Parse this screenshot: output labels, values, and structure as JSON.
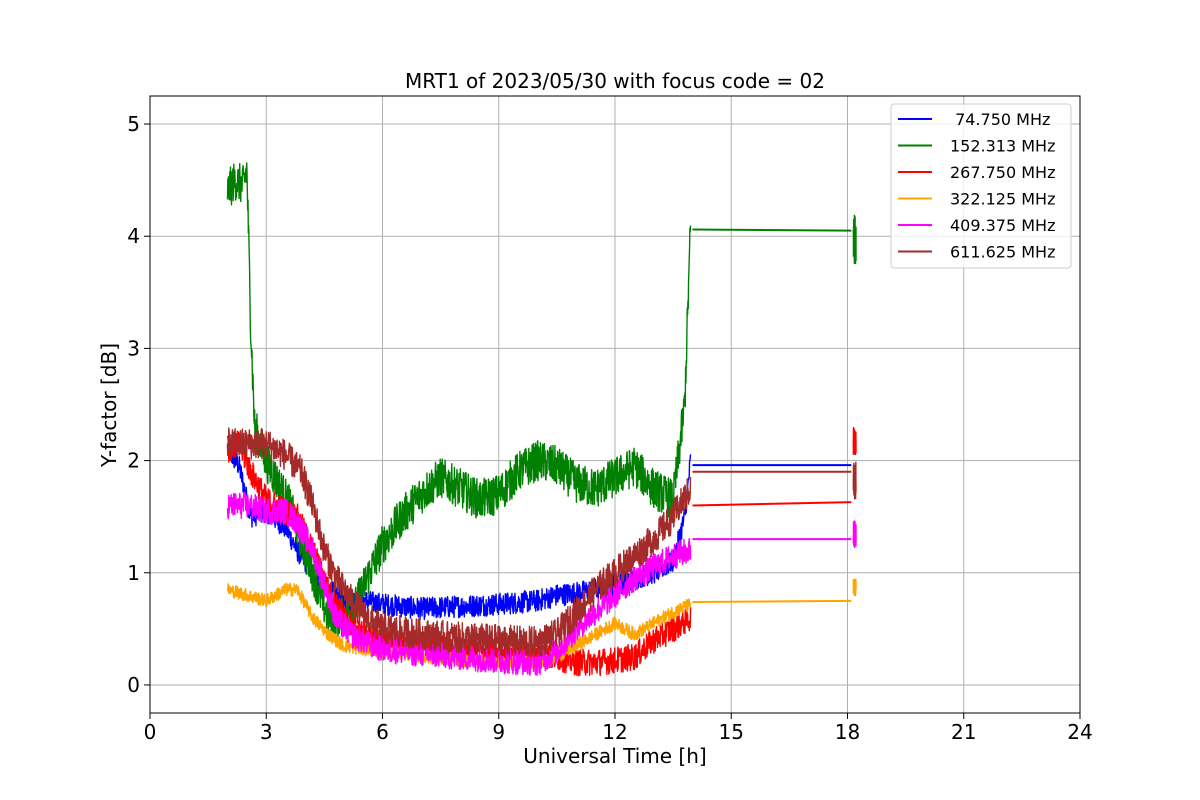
{
  "chart_data": {
    "type": "line",
    "title": "MRT1 of 2023/05/30 with focus code = 02",
    "xlabel": "Universal Time [h]",
    "ylabel": "Y-factor [dB]",
    "xlim": [
      0,
      24
    ],
    "ylim": [
      -0.25,
      5.25
    ],
    "xticks": [
      0,
      3,
      6,
      9,
      12,
      15,
      18,
      21,
      24
    ],
    "xtick_labels": [
      "0",
      "3",
      "6",
      "9",
      "12",
      "15",
      "18",
      "21",
      "24"
    ],
    "yticks": [
      0,
      1,
      2,
      3,
      4,
      5
    ],
    "ytick_labels": [
      "0",
      "1",
      "2",
      "3",
      "4",
      "5"
    ],
    "grid": true,
    "legend_position": "top-right",
    "series": [
      {
        "name": " 74.750 MHz",
        "color": "#0000ff",
        "noise": 0.1,
        "points": [
          [
            2.0,
            2.1
          ],
          [
            2.3,
            1.95
          ],
          [
            2.6,
            1.5
          ],
          [
            3.0,
            1.55
          ],
          [
            3.5,
            1.4
          ],
          [
            3.8,
            1.2
          ],
          [
            4.2,
            1.0
          ],
          [
            4.6,
            0.85
          ],
          [
            5.0,
            0.75
          ],
          [
            5.5,
            0.75
          ],
          [
            6.0,
            0.72
          ],
          [
            7.0,
            0.68
          ],
          [
            8.0,
            0.7
          ],
          [
            9.0,
            0.72
          ],
          [
            10.0,
            0.75
          ],
          [
            10.5,
            0.8
          ],
          [
            11.0,
            0.82
          ],
          [
            11.5,
            0.85
          ],
          [
            12.0,
            0.9
          ],
          [
            12.5,
            0.95
          ],
          [
            13.0,
            1.0
          ],
          [
            13.5,
            1.1
          ],
          [
            13.8,
            1.5
          ],
          [
            13.95,
            2.0
          ]
        ],
        "flat": [
          [
            14.0,
            1.96
          ],
          [
            18.1,
            1.96
          ]
        ]
      },
      {
        "name": "152.313 MHz",
        "color": "#008000",
        "noise": 0.18,
        "points": [
          [
            2.0,
            4.4
          ],
          [
            2.2,
            4.5
          ],
          [
            2.4,
            4.45
          ],
          [
            2.5,
            4.6
          ],
          [
            2.6,
            3.2
          ],
          [
            2.7,
            2.3
          ],
          [
            3.0,
            2.0
          ],
          [
            3.3,
            1.8
          ],
          [
            3.6,
            1.6
          ],
          [
            4.0,
            1.2
          ],
          [
            4.3,
            0.9
          ],
          [
            4.6,
            0.6
          ],
          [
            5.0,
            0.6
          ],
          [
            5.3,
            0.7
          ],
          [
            5.6,
            0.95
          ],
          [
            6.0,
            1.25
          ],
          [
            6.5,
            1.5
          ],
          [
            7.0,
            1.7
          ],
          [
            7.5,
            1.85
          ],
          [
            8.0,
            1.75
          ],
          [
            8.5,
            1.65
          ],
          [
            9.0,
            1.7
          ],
          [
            9.5,
            1.9
          ],
          [
            10.0,
            2.0
          ],
          [
            10.5,
            1.95
          ],
          [
            11.0,
            1.8
          ],
          [
            11.5,
            1.75
          ],
          [
            12.0,
            1.85
          ],
          [
            12.5,
            1.95
          ],
          [
            13.0,
            1.75
          ],
          [
            13.5,
            1.65
          ],
          [
            13.8,
            2.5
          ],
          [
            13.95,
            4.1
          ]
        ],
        "flat": [
          [
            14.0,
            4.06
          ],
          [
            18.1,
            4.05
          ]
        ],
        "cluster": [
          18.15,
          18.22,
          3.75,
          4.2
        ]
      },
      {
        "name": "267.750 MHz",
        "color": "#ff0000",
        "noise": 0.12,
        "points": [
          [
            2.0,
            2.1
          ],
          [
            2.3,
            2.15
          ],
          [
            2.6,
            1.9
          ],
          [
            3.0,
            1.65
          ],
          [
            3.5,
            1.55
          ],
          [
            3.8,
            1.5
          ],
          [
            4.2,
            1.2
          ],
          [
            4.6,
            0.85
          ],
          [
            5.0,
            0.6
          ],
          [
            5.5,
            0.45
          ],
          [
            6.0,
            0.4
          ],
          [
            7.0,
            0.35
          ],
          [
            8.0,
            0.3
          ],
          [
            9.0,
            0.3
          ],
          [
            10.0,
            0.25
          ],
          [
            10.5,
            0.25
          ],
          [
            11.0,
            0.2
          ],
          [
            11.5,
            0.2
          ],
          [
            12.0,
            0.22
          ],
          [
            12.5,
            0.25
          ],
          [
            13.0,
            0.4
          ],
          [
            13.5,
            0.5
          ],
          [
            13.95,
            0.6
          ]
        ],
        "flat": [
          [
            14.0,
            1.6
          ],
          [
            18.1,
            1.63
          ]
        ],
        "cluster": [
          18.15,
          18.22,
          2.05,
          2.3
        ]
      },
      {
        "name": "322.125 MHz",
        "color": "#ffa500",
        "noise": 0.06,
        "points": [
          [
            2.0,
            0.85
          ],
          [
            2.5,
            0.8
          ],
          [
            3.0,
            0.75
          ],
          [
            3.5,
            0.85
          ],
          [
            3.8,
            0.85
          ],
          [
            4.2,
            0.6
          ],
          [
            4.6,
            0.45
          ],
          [
            5.0,
            0.35
          ],
          [
            5.5,
            0.32
          ],
          [
            6.0,
            0.3
          ],
          [
            6.5,
            0.28
          ],
          [
            7.0,
            0.25
          ],
          [
            8.0,
            0.22
          ],
          [
            9.0,
            0.2
          ],
          [
            10.0,
            0.2
          ],
          [
            10.5,
            0.25
          ],
          [
            11.0,
            0.35
          ],
          [
            11.5,
            0.45
          ],
          [
            12.0,
            0.55
          ],
          [
            12.5,
            0.45
          ],
          [
            13.0,
            0.55
          ],
          [
            13.5,
            0.65
          ],
          [
            13.95,
            0.72
          ]
        ],
        "flat": [
          [
            14.0,
            0.74
          ],
          [
            18.1,
            0.75
          ]
        ],
        "cluster": [
          18.15,
          18.22,
          0.78,
          0.95
        ]
      },
      {
        "name": "409.375 MHz",
        "color": "#ff00ff",
        "noise": 0.12,
        "points": [
          [
            2.0,
            1.6
          ],
          [
            2.5,
            1.6
          ],
          [
            3.0,
            1.55
          ],
          [
            3.5,
            1.55
          ],
          [
            3.8,
            1.45
          ],
          [
            4.2,
            1.2
          ],
          [
            4.5,
            0.9
          ],
          [
            4.8,
            0.6
          ],
          [
            5.2,
            0.45
          ],
          [
            5.6,
            0.38
          ],
          [
            6.0,
            0.32
          ],
          [
            7.0,
            0.28
          ],
          [
            8.0,
            0.25
          ],
          [
            9.0,
            0.22
          ],
          [
            10.0,
            0.2
          ],
          [
            10.5,
            0.3
          ],
          [
            11.0,
            0.5
          ],
          [
            11.5,
            0.65
          ],
          [
            12.0,
            0.8
          ],
          [
            12.5,
            0.95
          ],
          [
            13.0,
            1.05
          ],
          [
            13.5,
            1.15
          ],
          [
            13.95,
            1.2
          ]
        ],
        "flat": [
          [
            14.0,
            1.3
          ],
          [
            18.1,
            1.3
          ]
        ],
        "cluster": [
          18.15,
          18.22,
          1.22,
          1.48
        ]
      },
      {
        "name": "611.625 MHz",
        "color": "#a52a2a",
        "noise": 0.14,
        "points": [
          [
            2.0,
            2.15
          ],
          [
            2.5,
            2.15
          ],
          [
            3.0,
            2.15
          ],
          [
            3.5,
            2.05
          ],
          [
            3.9,
            1.9
          ],
          [
            4.2,
            1.6
          ],
          [
            4.5,
            1.2
          ],
          [
            4.8,
            0.95
          ],
          [
            5.2,
            0.75
          ],
          [
            5.6,
            0.6
          ],
          [
            6.0,
            0.5
          ],
          [
            7.0,
            0.45
          ],
          [
            8.0,
            0.42
          ],
          [
            9.0,
            0.4
          ],
          [
            10.0,
            0.38
          ],
          [
            10.5,
            0.45
          ],
          [
            11.0,
            0.65
          ],
          [
            11.5,
            0.85
          ],
          [
            12.0,
            1.0
          ],
          [
            12.5,
            1.15
          ],
          [
            13.0,
            1.3
          ],
          [
            13.5,
            1.5
          ],
          [
            13.95,
            1.75
          ]
        ],
        "flat": [
          [
            14.0,
            1.9
          ],
          [
            18.1,
            1.9
          ]
        ],
        "cluster": [
          18.15,
          18.22,
          1.65,
          2.0
        ]
      }
    ]
  }
}
